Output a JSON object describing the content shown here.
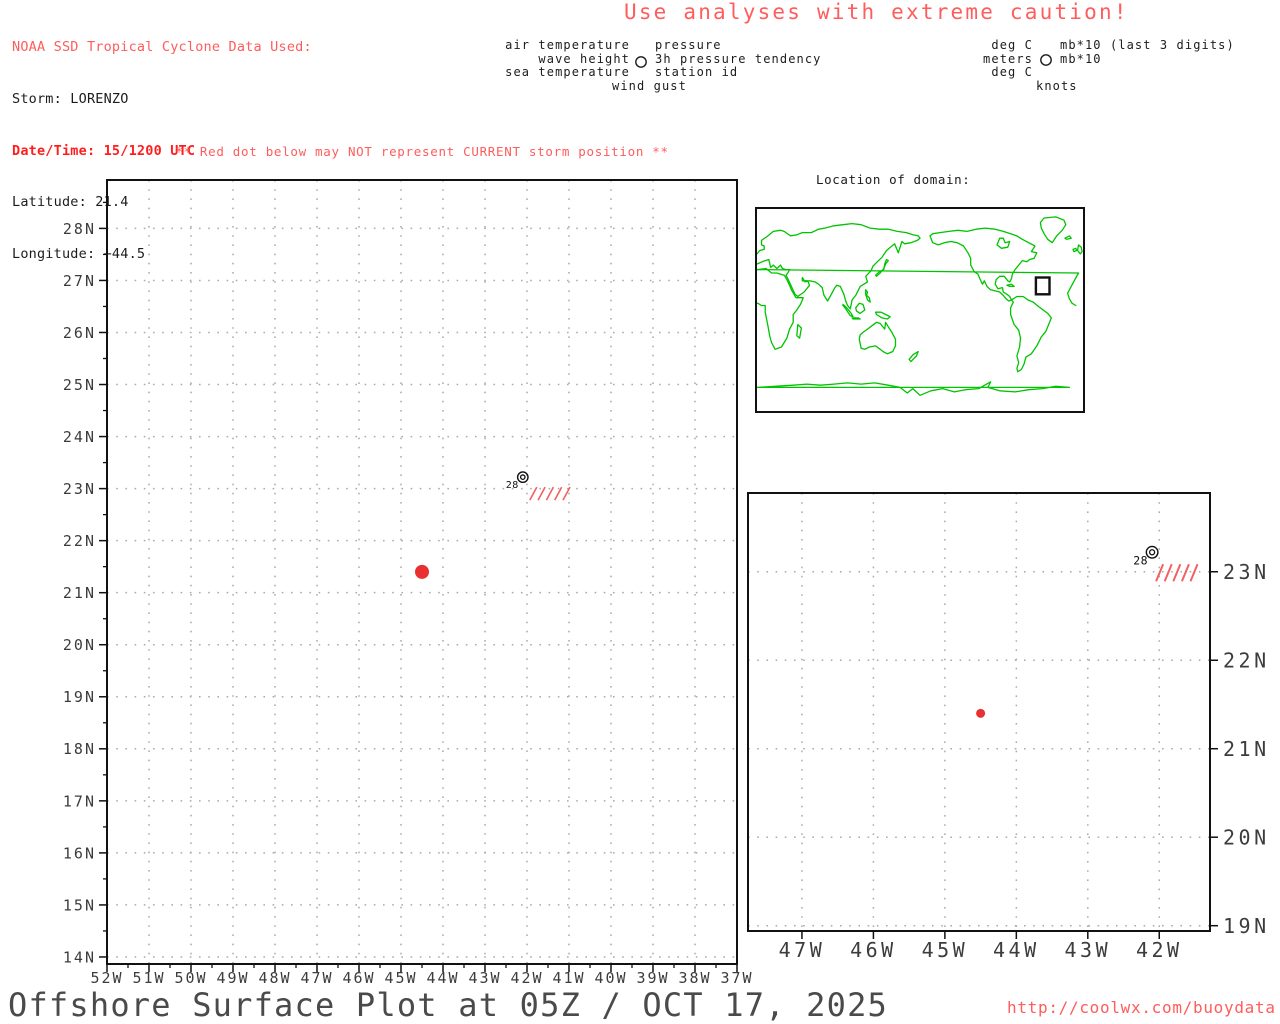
{
  "colors": {
    "salmon_red": "#ff5c5c",
    "alert_red": "#ff1e1e",
    "text_black": "#1c1c1c",
    "axis_text": "#3c3c3c",
    "grid_gray": "#aaaaaa",
    "storm_dot_red": "#e83030",
    "hatch_red": "#f26060",
    "coastline_green": "#00c400",
    "title_gray": "#4a4a4a"
  },
  "header": {
    "source_note": "NOAA SSD Tropical Cyclone Data Used:",
    "storm": "Storm: LORENZO",
    "datetime": "Date/Time: 15/1200 UTC",
    "latitude": "Latitude: 21.4",
    "longitude": "Longitude: −44.5",
    "caution": "Use analyses with extreme caution!"
  },
  "station_legend": {
    "left_labels": [
      "air temperature",
      "wave height",
      "sea temperature"
    ],
    "right_labels": [
      "pressure",
      "3h pressure tendency",
      "station id"
    ],
    "bottom_label": "wind gust"
  },
  "units_legend": {
    "left_labels": [
      "deg C",
      "meters",
      "deg C"
    ],
    "right_labels": [
      "mb*10 (last 3 digits)",
      "mb*10"
    ],
    "bottom_label": "knots"
  },
  "warning": "** Red dot below may NOT represent CURRENT storm position **",
  "map_inset": {
    "title": "Location of domain:",
    "domain_box": {
      "lon_min": -52,
      "lon_max": -37,
      "lat_min": 14,
      "lat_max": 29
    }
  },
  "footer": {
    "title": "Offshore Surface Plot at 05Z / OCT 17, 2025",
    "url": "http://coolwx.com/buoydata"
  },
  "chart_data": [
    {
      "id": "main_plot",
      "type": "scatter",
      "title": "",
      "grid": "dotted",
      "xlim": [
        -52.0,
        -37.0
      ],
      "ylim": [
        13.865,
        28.93
      ],
      "x_ticks": [
        "52W",
        "51W",
        "50W",
        "49W",
        "48W",
        "47W",
        "46W",
        "45W",
        "44W",
        "43W",
        "42W",
        "41W",
        "40W",
        "39W",
        "38W",
        "37W"
      ],
      "y_ticks": [
        "14N",
        "15N",
        "16N",
        "17N",
        "18N",
        "19N",
        "20N",
        "21N",
        "22N",
        "23N",
        "24N",
        "25N",
        "26N",
        "27N",
        "28N"
      ],
      "minor_ticks_deg": 0.5,
      "points": [
        {
          "name": "storm-position",
          "lon": -44.5,
          "lat": 21.4,
          "marker": "filled-dot",
          "color": "#e83030"
        },
        {
          "name": "buoy-station",
          "lon": -42.1,
          "lat": 23.22,
          "marker": "double-circle",
          "station_label": "28",
          "hatch_marks": 5,
          "hatch_color": "#f26060"
        }
      ]
    },
    {
      "id": "inset_plot",
      "type": "scatter",
      "title": "",
      "grid": "dotted",
      "xlim": [
        -47.755,
        -41.29
      ],
      "ylim": [
        18.94,
        23.89
      ],
      "x_ticks": [
        "47W",
        "46W",
        "45W",
        "44W",
        "43W",
        "42W"
      ],
      "y_ticks": [
        "19N",
        "20N",
        "21N",
        "22N",
        "23N"
      ],
      "minor_ticks_deg": 0,
      "points": [
        {
          "name": "storm-position",
          "lon": -44.5,
          "lat": 21.4,
          "marker": "filled-dot",
          "color": "#e83030"
        },
        {
          "name": "buoy-station",
          "lon": -42.1,
          "lat": 23.22,
          "marker": "double-circle",
          "station_label": "28",
          "hatch_marks": 5,
          "hatch_color": "#f26060"
        }
      ]
    }
  ]
}
